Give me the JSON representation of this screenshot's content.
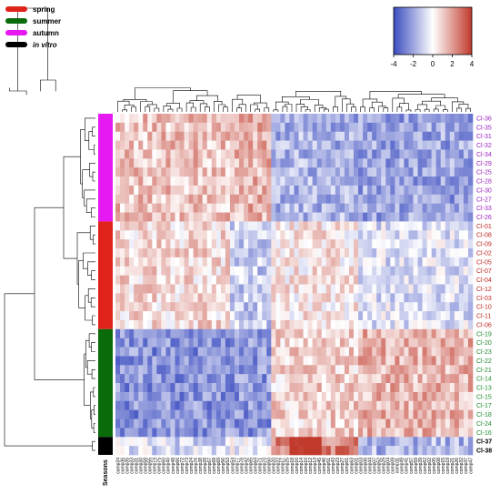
{
  "chart_data": {
    "type": "heatmap",
    "title": "",
    "color_scale": {
      "min": -4,
      "max": 4,
      "ticks": [
        "-4",
        "-2",
        "0",
        "2",
        "4"
      ],
      "low_color": "#3b4cc0",
      "mid_color": "#ffffff",
      "high_color": "#c0392b"
    },
    "seasons_label": "Seasons",
    "legend": [
      {
        "label": "spring",
        "color": "#e0231a",
        "italic": false
      },
      {
        "label": "summer",
        "color": "#0a6b0a",
        "italic": false
      },
      {
        "label": "autumn",
        "color": "#e619f2",
        "italic": false
      },
      {
        "label": "in vitro",
        "color": "#000000",
        "italic": true
      }
    ],
    "rows": [
      {
        "label": "Cl-36",
        "season": "autumn",
        "label_color": "#9b1fbf"
      },
      {
        "label": "Cl-35",
        "season": "autumn",
        "label_color": "#9b1fbf"
      },
      {
        "label": "Cl-31",
        "season": "autumn",
        "label_color": "#9b1fbf"
      },
      {
        "label": "Cl-32",
        "season": "autumn",
        "label_color": "#9b1fbf"
      },
      {
        "label": "Cl-34",
        "season": "autumn",
        "label_color": "#9b1fbf"
      },
      {
        "label": "Cl-29",
        "season": "autumn",
        "label_color": "#9b1fbf"
      },
      {
        "label": "Cl-25",
        "season": "autumn",
        "label_color": "#9b1fbf"
      },
      {
        "label": "Cl-28",
        "season": "autumn",
        "label_color": "#9b1fbf"
      },
      {
        "label": "Cl-30",
        "season": "autumn",
        "label_color": "#9b1fbf"
      },
      {
        "label": "Cl-27",
        "season": "autumn",
        "label_color": "#9b1fbf"
      },
      {
        "label": "Cl-33",
        "season": "autumn",
        "label_color": "#9b1fbf"
      },
      {
        "label": "Cl-26",
        "season": "autumn",
        "label_color": "#9b1fbf"
      },
      {
        "label": "Cl-01",
        "season": "spring",
        "label_color": "#c0281e"
      },
      {
        "label": "Cl-08",
        "season": "spring",
        "label_color": "#c0281e"
      },
      {
        "label": "Cl-09",
        "season": "spring",
        "label_color": "#c0281e"
      },
      {
        "label": "Cl-02",
        "season": "spring",
        "label_color": "#c0281e"
      },
      {
        "label": "Cl-05",
        "season": "spring",
        "label_color": "#c0281e"
      },
      {
        "label": "Cl-07",
        "season": "spring",
        "label_color": "#c0281e"
      },
      {
        "label": "Cl-04",
        "season": "spring",
        "label_color": "#c0281e"
      },
      {
        "label": "Cl-12",
        "season": "spring",
        "label_color": "#c0281e"
      },
      {
        "label": "Cl-03",
        "season": "spring",
        "label_color": "#c0281e"
      },
      {
        "label": "Cl-10",
        "season": "spring",
        "label_color": "#c0281e"
      },
      {
        "label": "Cl-11",
        "season": "spring",
        "label_color": "#c0281e"
      },
      {
        "label": "Cl-06",
        "season": "spring",
        "label_color": "#c0281e"
      },
      {
        "label": "Cl-19",
        "season": "summer",
        "label_color": "#1e8a2e"
      },
      {
        "label": "Cl-20",
        "season": "summer",
        "label_color": "#1e8a2e"
      },
      {
        "label": "Cl-23",
        "season": "summer",
        "label_color": "#1e8a2e"
      },
      {
        "label": "Cl-22",
        "season": "summer",
        "label_color": "#1e8a2e"
      },
      {
        "label": "Cl-21",
        "season": "summer",
        "label_color": "#1e8a2e"
      },
      {
        "label": "Cl-14",
        "season": "summer",
        "label_color": "#1e8a2e"
      },
      {
        "label": "Cl-13",
        "season": "summer",
        "label_color": "#1e8a2e"
      },
      {
        "label": "Cl-15",
        "season": "summer",
        "label_color": "#1e8a2e"
      },
      {
        "label": "Cl-17",
        "season": "summer",
        "label_color": "#1e8a2e"
      },
      {
        "label": "Cl-18",
        "season": "summer",
        "label_color": "#1e8a2e"
      },
      {
        "label": "Cl-24",
        "season": "summer",
        "label_color": "#1e8a2e"
      },
      {
        "label": "Cl-16",
        "season": "summer",
        "label_color": "#1e8a2e"
      },
      {
        "label": "Cl-37",
        "season": "in vitro",
        "label_color": "#000000"
      },
      {
        "label": "Cl-38",
        "season": "in vitro",
        "label_color": "#000000"
      }
    ],
    "row_groups": [
      {
        "season": "autumn",
        "start": 0,
        "end": 11
      },
      {
        "season": "spring",
        "start": 12,
        "end": 23
      },
      {
        "season": "summer",
        "start": 24,
        "end": 35
      },
      {
        "season": "in vitro",
        "start": 36,
        "end": 37
      }
    ],
    "columns": [
      "comp34",
      "comp36",
      "comp35",
      "comp33",
      "comp31",
      "comp30",
      "comp58",
      "comp55",
      "comp74",
      "comp75",
      "comp60",
      "comp40",
      "comp48",
      "comp66",
      "comp72",
      "comp73",
      "comp24",
      "comp76",
      "comp38",
      "comp28",
      "comp67",
      "comp68",
      "comp69",
      "comp56",
      "comp53",
      "comp54",
      "comp77",
      "comp78",
      "comp42",
      "comp65",
      "comp64",
      "comp71",
      "comp70",
      "comp50",
      "comp20",
      "comp22",
      "comp17",
      "comp25",
      "comp18",
      "comp16",
      "comp14",
      "comp10",
      "comp12",
      "comp13",
      "comp45",
      "comp46",
      "comp51",
      "comp43",
      "comp23",
      "comp27",
      "comp61",
      "comp63",
      "comp01",
      "comp03",
      "comp06",
      "comp44",
      "comp07",
      "comp52",
      "comp29",
      "comp04",
      "comp09",
      "comp11",
      "comp49",
      "comp41",
      "comp57",
      "comp59",
      "comp39",
      "comp62",
      "comp02",
      "comp05",
      "comp08",
      "comp15",
      "comp19",
      "comp21",
      "comp26",
      "comp32",
      "comp37",
      "comp47"
    ],
    "column_blocks": [
      {
        "start": 0,
        "end": 24,
        "values": {
          "autumn": 1.2,
          "spring": 0.7,
          "summer": -2.4,
          "in vitro": -0.8
        }
      },
      {
        "start": 25,
        "end": 33,
        "values": {
          "autumn": 1.5,
          "spring": -1.1,
          "summer": -2.3,
          "in vitro": -0.4
        }
      },
      {
        "start": 34,
        "end": 52,
        "values": {
          "autumn": -1.7,
          "spring": 0.4,
          "summer": 0.9,
          "in vitro": 2.6
        }
      },
      {
        "start": 53,
        "end": 77,
        "values": {
          "autumn": -2.0,
          "spring": -0.7,
          "summer": 1.5,
          "in vitro": -1.6
        }
      }
    ]
  }
}
